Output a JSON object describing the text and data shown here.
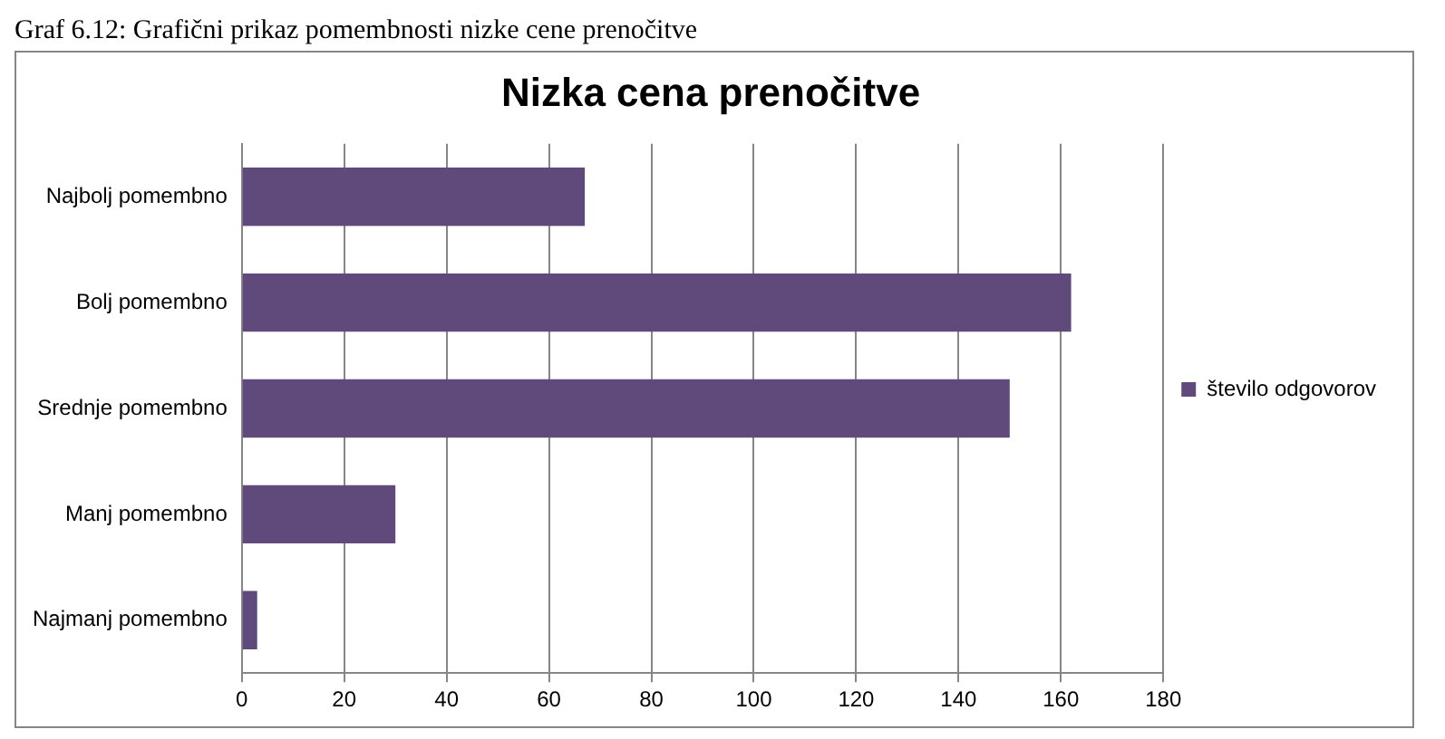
{
  "chart_data": {
    "type": "bar",
    "orientation": "horizontal",
    "title": "Nizka cena prenočitve",
    "annotations": [
      "Graf 6.12: Grafični prikaz pomembnosti nizke cene prenočitve"
    ],
    "categories": [
      "Najbolj pomembno",
      "Bolj pomembno",
      "Srednje pomembno",
      "Manj pomembno",
      "Najmanj pomembno"
    ],
    "series": [
      {
        "name": "število odgovorov",
        "color": "#604a7b",
        "values": [
          67,
          162,
          150,
          30,
          3
        ]
      }
    ],
    "xlim": [
      0,
      180
    ],
    "xticks": [
      0,
      20,
      40,
      60,
      80,
      100,
      120,
      140,
      160,
      180
    ],
    "grid": "x",
    "legend": "right"
  }
}
